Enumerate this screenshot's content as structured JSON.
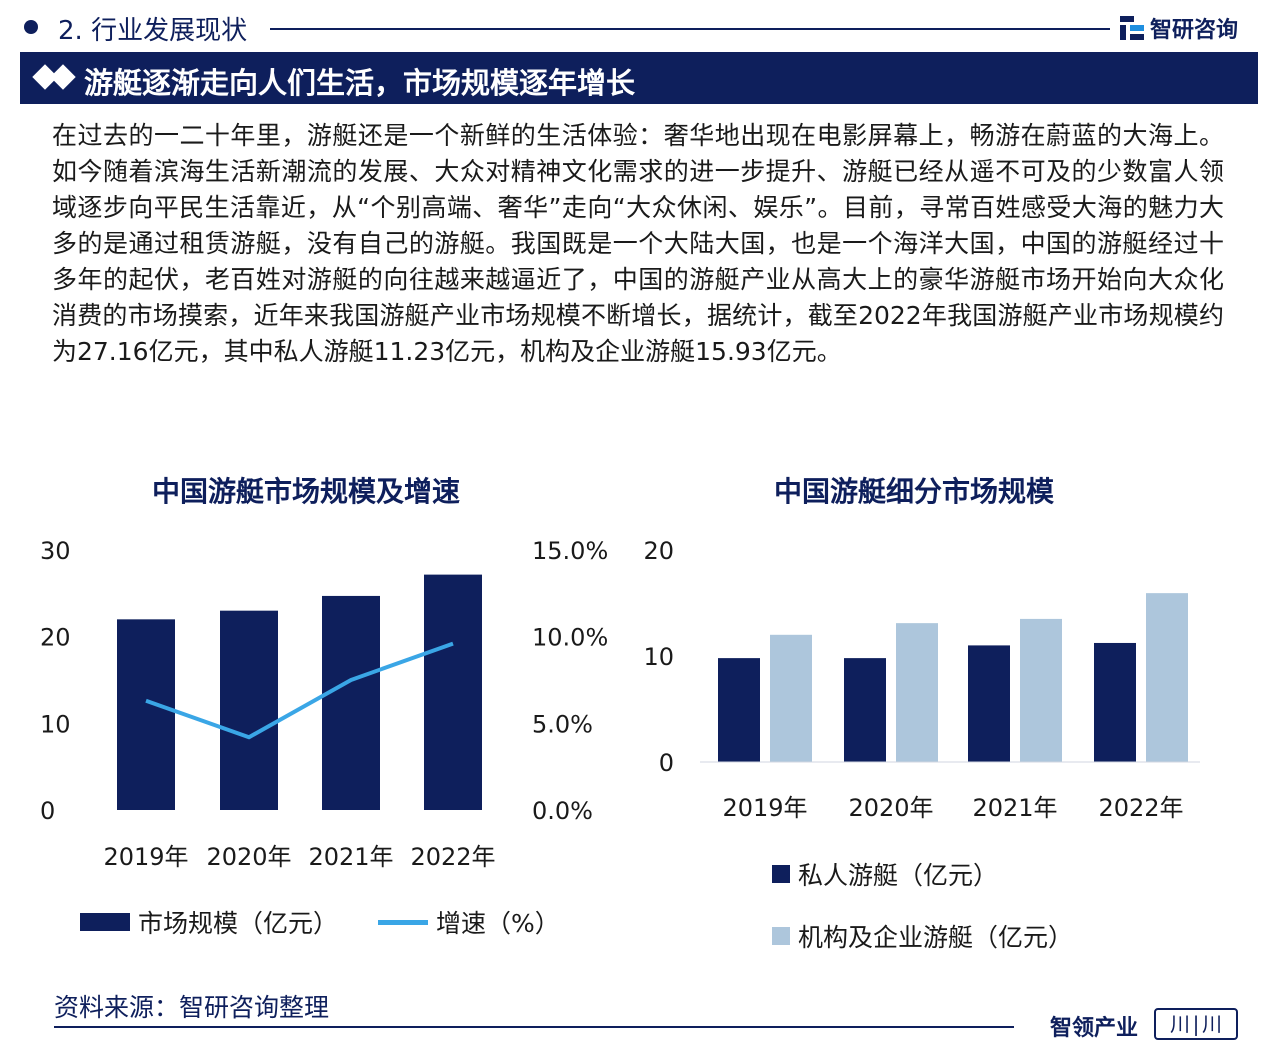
{
  "header": {
    "section_title": "2. 行业发展现状",
    "brand": "智研咨询",
    "banner_title": "游艇逐渐走向人们生活，市场规模逐年增长"
  },
  "paragraph": "在过去的一二十年里，游艇还是一个新鲜的生活体验：奢华地出现在电影屏幕上，畅游在蔚蓝的大海上。如今随着滨海生活新潮流的发展、大众对精神文化需求的进一步提升、游艇已经从遥不可及的少数富人领域逐步向平民生活靠近，从“个别高端、奢华”走向“大众休闲、娱乐”。目前，寻常百姓感受大海的魅力大多的是通过租赁游艇，没有自己的游艇。我国既是一个大陆大国，也是一个海洋大国，中国的游艇经过十多年的起伏，老百姓对游艇的向往越来越逼近了，中国的游艇产业从高大上的豪华游艇市场开始向大众化消费的市场摸索，近年来我国游艇产业市场规模不断增长，据统计，截至2022年我国游艇产业市场规模约为27.16亿元，其中私人游艇11.23亿元，机构及企业游艇15.93亿元。",
  "chart_data": [
    {
      "type": "bar",
      "title": "中国游艇市场规模及增速",
      "categories": [
        "2019年",
        "2020年",
        "2021年",
        "2022年"
      ],
      "series": [
        {
          "name": "市场规模（亿元）",
          "type": "bar",
          "axis": "left",
          "values": [
            22.0,
            23.0,
            24.7,
            27.16
          ],
          "color": "#0e1f5c"
        },
        {
          "name": "增速（%）",
          "type": "line",
          "axis": "right",
          "values": [
            6.3,
            4.2,
            7.5,
            9.6
          ],
          "color": "#3aa6e6"
        }
      ],
      "y_left": {
        "min": 0,
        "max": 30,
        "ticks": [
          "0",
          "10",
          "20",
          "30"
        ]
      },
      "y_right": {
        "min": 0,
        "max": 15,
        "ticks": [
          "0.0%",
          "5.0%",
          "10.0%",
          "15.0%"
        ]
      },
      "legend": "bottom",
      "grid": false
    },
    {
      "type": "bar",
      "title": "中国游艇细分市场规模",
      "categories": [
        "2019年",
        "2020年",
        "2021年",
        "2022年"
      ],
      "series": [
        {
          "name": "私人游艇（亿元）",
          "values": [
            9.8,
            9.8,
            11.0,
            11.23
          ],
          "color": "#0e1f5c"
        },
        {
          "name": "机构及企业游艇（亿元）",
          "values": [
            12.0,
            13.1,
            13.5,
            15.93
          ],
          "color": "#adc6dc"
        }
      ],
      "y": {
        "min": 0,
        "max": 20,
        "ticks": [
          "0",
          "10",
          "20"
        ]
      },
      "legend": "bottom",
      "grid": false
    }
  ],
  "footer": {
    "source": "资料来源：智研咨询整理",
    "brand": "智领产业",
    "logo_text": "川|川"
  }
}
